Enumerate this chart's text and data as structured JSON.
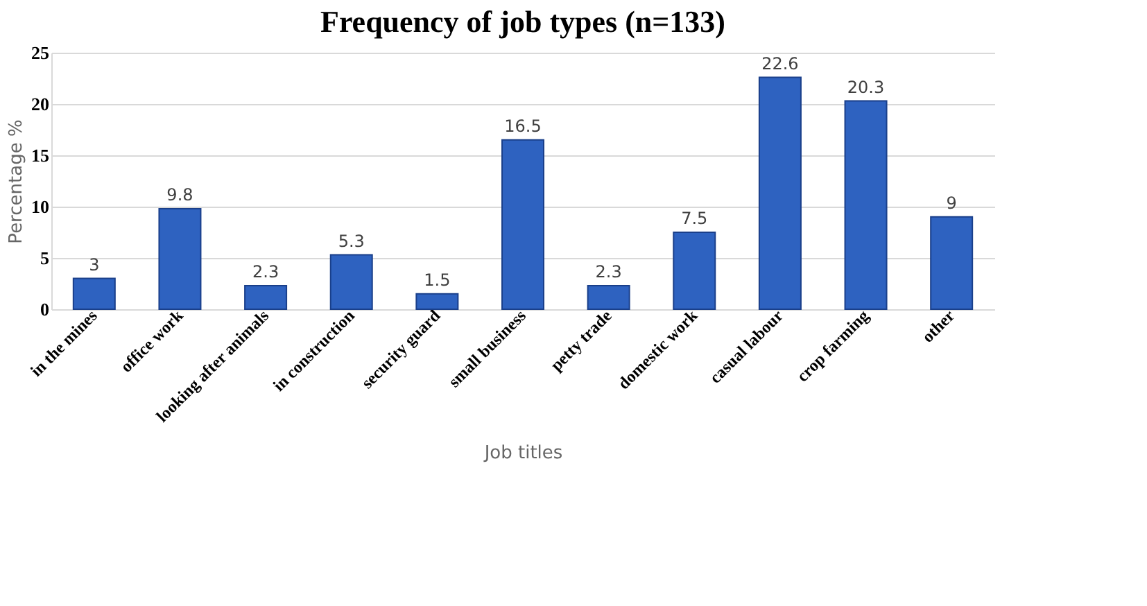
{
  "chart_data": {
    "type": "bar",
    "title": "Frequency of job types (n=133)",
    "xlabel": "Job titles",
    "ylabel": "Percentage %",
    "categories": [
      "in the mines",
      "office work",
      "looking after animals",
      "in construction",
      "security guard",
      "small business",
      "petty trade",
      "domestic work",
      "casual labour",
      "crop farming",
      "other"
    ],
    "values": [
      3,
      9.8,
      2.3,
      5.3,
      1.5,
      16.5,
      2.3,
      7.5,
      22.6,
      20.3,
      9
    ],
    "color": "#2e62c0",
    "ylim": [
      0,
      25
    ],
    "yticks": [
      0,
      5,
      10,
      15,
      20,
      25
    ],
    "grid": "y",
    "data_labels": true
  }
}
